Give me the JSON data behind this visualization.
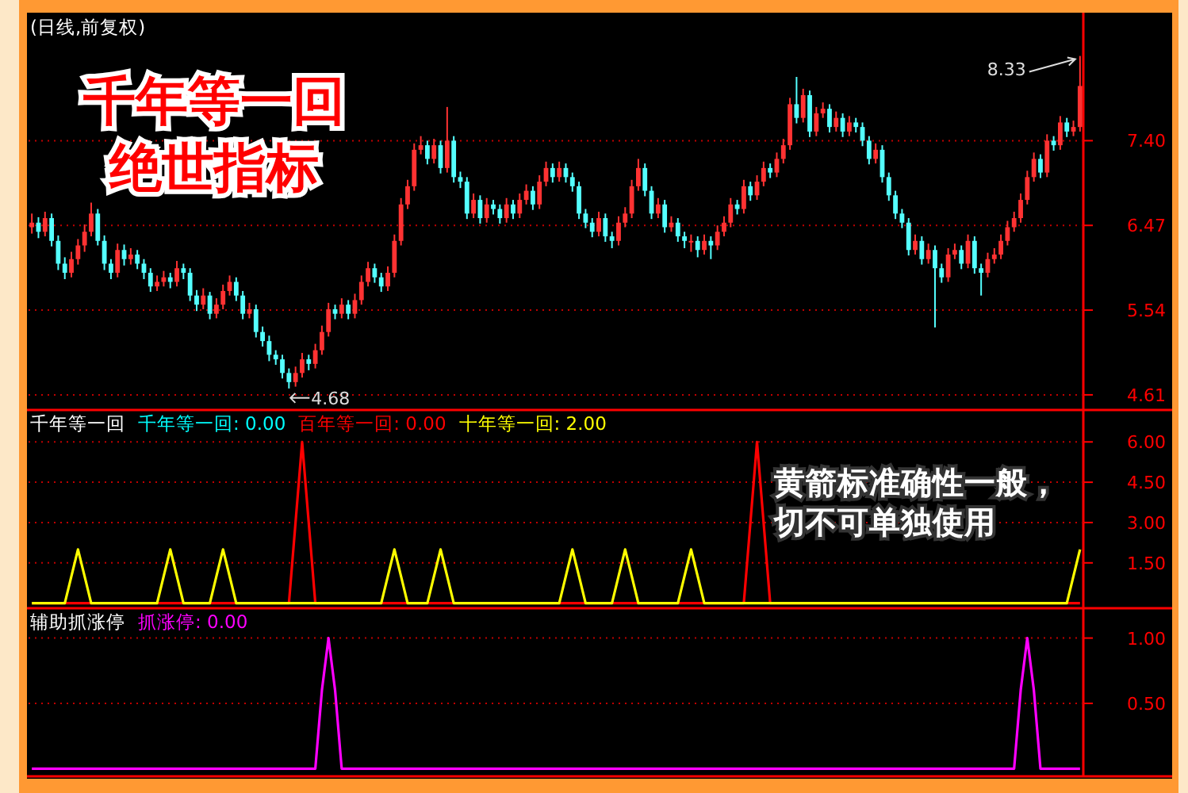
{
  "chart_data": [
    {
      "type": "candlestick",
      "title": "(日线,前复权)",
      "annotations": [
        "千年等一回",
        "绝世指标",
        "4.68",
        "8.33"
      ],
      "categories": [
        null,
        null,
        null,
        null,
        null,
        null,
        null,
        null,
        null,
        null,
        null,
        null,
        null,
        null,
        null,
        null,
        null,
        null,
        null,
        null,
        null,
        null,
        null,
        null,
        null,
        null,
        null,
        null,
        null,
        null,
        null,
        null,
        null,
        null,
        null,
        null,
        null,
        null,
        null,
        null,
        null,
        null,
        null,
        null,
        null,
        null,
        null,
        null,
        null,
        null,
        null,
        null,
        null,
        null,
        null,
        null,
        null,
        null,
        null,
        null,
        null,
        null,
        null,
        null,
        null,
        null,
        null,
        null,
        null,
        null,
        null,
        null,
        null,
        null,
        null,
        null,
        null,
        null,
        null,
        null,
        null,
        null,
        null,
        null,
        null,
        null,
        null,
        null,
        null,
        null,
        null,
        null,
        null,
        null,
        null,
        null,
        null,
        null,
        null,
        null,
        null,
        null,
        null,
        null,
        null,
        null,
        null,
        null,
        null,
        null,
        null,
        null,
        null,
        null,
        null,
        null,
        null,
        null,
        null,
        null,
        null,
        null,
        null,
        null,
        null,
        null,
        null,
        null,
        null,
        null,
        null,
        null,
        null,
        null,
        null,
        null,
        null,
        null,
        null,
        null,
        null,
        null,
        null,
        null,
        null,
        null,
        null,
        null,
        null,
        null,
        null,
        null,
        null,
        null,
        null,
        null,
        null,
        null,
        null,
        null
      ],
      "ohlc": [
        [
          6.45,
          6.6,
          6.38,
          6.5
        ],
        [
          6.5,
          6.56,
          6.33,
          6.4
        ],
        [
          6.4,
          6.62,
          6.35,
          6.55
        ],
        [
          6.55,
          6.6,
          6.24,
          6.3
        ],
        [
          6.3,
          6.36,
          5.98,
          6.05
        ],
        [
          6.05,
          6.12,
          5.88,
          5.95
        ],
        [
          5.95,
          6.18,
          5.9,
          6.1
        ],
        [
          6.1,
          6.32,
          6.04,
          6.25
        ],
        [
          6.25,
          6.48,
          6.18,
          6.4
        ],
        [
          6.4,
          6.72,
          6.35,
          6.6
        ],
        [
          6.6,
          6.65,
          6.25,
          6.3
        ],
        [
          6.3,
          6.36,
          5.98,
          6.05
        ],
        [
          6.05,
          6.1,
          5.88,
          5.95
        ],
        [
          5.95,
          6.27,
          5.9,
          6.2
        ],
        [
          6.2,
          6.26,
          6.03,
          6.1
        ],
        [
          6.1,
          6.22,
          6.04,
          6.15
        ],
        [
          6.15,
          6.2,
          5.99,
          6.05
        ],
        [
          6.05,
          6.1,
          5.88,
          5.95
        ],
        [
          5.95,
          6.0,
          5.74,
          5.8
        ],
        [
          5.8,
          5.92,
          5.75,
          5.85
        ],
        [
          5.85,
          5.97,
          5.8,
          5.9
        ],
        [
          5.9,
          5.95,
          5.78,
          5.85
        ],
        [
          5.85,
          6.08,
          5.8,
          6.0
        ],
        [
          6.0,
          6.05,
          5.88,
          5.95
        ],
        [
          5.95,
          6.0,
          5.64,
          5.7
        ],
        [
          5.7,
          5.76,
          5.53,
          5.6
        ],
        [
          5.6,
          5.78,
          5.55,
          5.7
        ],
        [
          5.7,
          5.74,
          5.44,
          5.5
        ],
        [
          5.5,
          5.67,
          5.45,
          5.6
        ],
        [
          5.6,
          5.82,
          5.55,
          5.75
        ],
        [
          5.75,
          5.92,
          5.7,
          5.85
        ],
        [
          5.85,
          5.9,
          5.64,
          5.7
        ],
        [
          5.7,
          5.75,
          5.44,
          5.5
        ],
        [
          5.5,
          5.62,
          5.45,
          5.55
        ],
        [
          5.55,
          5.6,
          5.24,
          5.3
        ],
        [
          5.3,
          5.36,
          5.14,
          5.2
        ],
        [
          5.2,
          5.26,
          4.98,
          5.05
        ],
        [
          5.05,
          5.1,
          4.94,
          5.0
        ],
        [
          5.0,
          5.05,
          4.79,
          4.85
        ],
        [
          4.85,
          4.9,
          4.68,
          4.75
        ],
        [
          4.75,
          4.92,
          4.7,
          4.85
        ],
        [
          4.85,
          5.07,
          4.8,
          5.0
        ],
        [
          5.0,
          5.05,
          4.88,
          4.95
        ],
        [
          4.95,
          5.17,
          4.9,
          5.1
        ],
        [
          5.1,
          5.37,
          5.05,
          5.3
        ],
        [
          5.3,
          5.62,
          5.25,
          5.55
        ],
        [
          5.55,
          5.6,
          5.44,
          5.5
        ],
        [
          5.5,
          5.67,
          5.45,
          5.6
        ],
        [
          5.6,
          5.65,
          5.44,
          5.5
        ],
        [
          5.5,
          5.72,
          5.45,
          5.65
        ],
        [
          5.65,
          5.92,
          5.6,
          5.85
        ],
        [
          5.85,
          6.07,
          5.8,
          6.0
        ],
        [
          6.0,
          6.05,
          5.84,
          5.9
        ],
        [
          5.9,
          5.95,
          5.74,
          5.8
        ],
        [
          5.8,
          6.02,
          5.75,
          5.95
        ],
        [
          5.95,
          6.37,
          5.9,
          6.3
        ],
        [
          6.3,
          6.77,
          6.25,
          6.7
        ],
        [
          6.7,
          6.97,
          6.65,
          6.9
        ],
        [
          6.9,
          7.37,
          6.85,
          7.3
        ],
        [
          7.3,
          7.45,
          7.25,
          7.35
        ],
        [
          7.35,
          7.4,
          7.14,
          7.2
        ],
        [
          7.2,
          7.42,
          7.15,
          7.35
        ],
        [
          7.35,
          7.4,
          7.04,
          7.1
        ],
        [
          7.1,
          7.77,
          7.05,
          7.4
        ],
        [
          7.4,
          7.45,
          6.94,
          7.0
        ],
        [
          7.0,
          7.06,
          6.88,
          6.95
        ],
        [
          6.95,
          7.0,
          6.54,
          6.6
        ],
        [
          6.6,
          6.82,
          6.55,
          6.75
        ],
        [
          6.75,
          6.8,
          6.49,
          6.55
        ],
        [
          6.55,
          6.77,
          6.5,
          6.7
        ],
        [
          6.7,
          6.75,
          6.59,
          6.65
        ],
        [
          6.65,
          6.7,
          6.49,
          6.55
        ],
        [
          6.55,
          6.77,
          6.5,
          6.7
        ],
        [
          6.7,
          6.75,
          6.54,
          6.6
        ],
        [
          6.6,
          6.82,
          6.55,
          6.75
        ],
        [
          6.75,
          6.92,
          6.7,
          6.85
        ],
        [
          6.85,
          6.9,
          6.64,
          6.7
        ],
        [
          6.7,
          7.02,
          6.65,
          6.95
        ],
        [
          6.95,
          7.17,
          6.9,
          7.1
        ],
        [
          7.1,
          7.15,
          6.94,
          7.0
        ],
        [
          7.0,
          7.17,
          6.95,
          7.1
        ],
        [
          7.1,
          7.15,
          6.94,
          7.0
        ],
        [
          7.0,
          7.05,
          6.84,
          6.9
        ],
        [
          6.9,
          6.95,
          6.54,
          6.6
        ],
        [
          6.6,
          6.65,
          6.44,
          6.5
        ],
        [
          6.5,
          6.55,
          6.34,
          6.4
        ],
        [
          6.4,
          6.62,
          6.35,
          6.55
        ],
        [
          6.55,
          6.6,
          6.29,
          6.35
        ],
        [
          6.35,
          6.4,
          6.22,
          6.3
        ],
        [
          6.3,
          6.57,
          6.25,
          6.5
        ],
        [
          6.5,
          6.67,
          6.45,
          6.6
        ],
        [
          6.6,
          6.97,
          6.55,
          6.9
        ],
        [
          6.9,
          7.2,
          6.85,
          7.1
        ],
        [
          7.1,
          7.15,
          6.79,
          6.85
        ],
        [
          6.85,
          6.9,
          6.54,
          6.6
        ],
        [
          6.6,
          6.77,
          6.55,
          6.7
        ],
        [
          6.7,
          6.75,
          6.39,
          6.45
        ],
        [
          6.45,
          6.57,
          6.4,
          6.5
        ],
        [
          6.5,
          6.55,
          6.29,
          6.35
        ],
        [
          6.35,
          6.4,
          6.22,
          6.3
        ],
        [
          6.3,
          6.37,
          6.18,
          6.3
        ],
        [
          6.3,
          6.35,
          6.12,
          6.2
        ],
        [
          6.2,
          6.37,
          6.15,
          6.3
        ],
        [
          6.3,
          6.35,
          6.1,
          6.25
        ],
        [
          6.25,
          6.47,
          6.2,
          6.4
        ],
        [
          6.4,
          6.57,
          6.35,
          6.5
        ],
        [
          6.5,
          6.77,
          6.45,
          6.7
        ],
        [
          6.7,
          6.75,
          6.59,
          6.65
        ],
        [
          6.65,
          6.97,
          6.6,
          6.9
        ],
        [
          6.9,
          6.95,
          6.74,
          6.8
        ],
        [
          6.8,
          7.02,
          6.75,
          6.95
        ],
        [
          6.95,
          7.17,
          6.9,
          7.1
        ],
        [
          7.1,
          7.15,
          6.99,
          7.05
        ],
        [
          7.05,
          7.27,
          7.0,
          7.2
        ],
        [
          7.2,
          7.42,
          7.15,
          7.35
        ],
        [
          7.35,
          7.87,
          7.3,
          7.8
        ],
        [
          7.8,
          8.1,
          7.59,
          7.65
        ],
        [
          7.65,
          7.97,
          7.6,
          7.9
        ],
        [
          7.9,
          7.95,
          7.44,
          7.5
        ],
        [
          7.5,
          7.77,
          7.45,
          7.7
        ],
        [
          7.7,
          7.82,
          7.65,
          7.75
        ],
        [
          7.75,
          7.8,
          7.49,
          7.55
        ],
        [
          7.55,
          7.72,
          7.5,
          7.65
        ],
        [
          7.65,
          7.7,
          7.44,
          7.5
        ],
        [
          7.5,
          7.67,
          7.45,
          7.6
        ],
        [
          7.6,
          7.65,
          7.49,
          7.55
        ],
        [
          7.55,
          7.6,
          7.34,
          7.4
        ],
        [
          7.4,
          7.45,
          7.14,
          7.2
        ],
        [
          7.2,
          7.37,
          7.15,
          7.3
        ],
        [
          7.3,
          7.35,
          6.94,
          7.0
        ],
        [
          7.0,
          7.05,
          6.74,
          6.8
        ],
        [
          6.8,
          6.85,
          6.54,
          6.6
        ],
        [
          6.6,
          6.65,
          6.44,
          6.5
        ],
        [
          6.5,
          6.55,
          6.14,
          6.2
        ],
        [
          6.2,
          6.37,
          6.15,
          6.3
        ],
        [
          6.3,
          6.35,
          6.04,
          6.1
        ],
        [
          6.1,
          6.27,
          6.05,
          6.2
        ],
        [
          6.2,
          6.25,
          5.35,
          6.0
        ],
        [
          6.0,
          6.05,
          5.84,
          5.9
        ],
        [
          5.9,
          6.22,
          5.85,
          6.15
        ],
        [
          6.15,
          6.27,
          6.1,
          6.2
        ],
        [
          6.2,
          6.25,
          5.99,
          6.05
        ],
        [
          6.05,
          6.37,
          6.0,
          6.3
        ],
        [
          6.3,
          6.35,
          5.94,
          6.0
        ],
        [
          6.0,
          6.05,
          5.7,
          5.95
        ],
        [
          5.95,
          6.17,
          5.9,
          6.1
        ],
        [
          6.1,
          6.22,
          6.05,
          6.15
        ],
        [
          6.15,
          6.37,
          6.1,
          6.3
        ],
        [
          6.3,
          6.52,
          6.25,
          6.45
        ],
        [
          6.45,
          6.62,
          6.4,
          6.55
        ],
        [
          6.55,
          6.82,
          6.5,
          6.75
        ],
        [
          6.75,
          7.07,
          6.7,
          7.0
        ],
        [
          7.0,
          7.27,
          6.95,
          7.2
        ],
        [
          7.2,
          7.25,
          6.99,
          7.05
        ],
        [
          7.05,
          7.47,
          7.0,
          7.4
        ],
        [
          7.4,
          7.45,
          7.29,
          7.35
        ],
        [
          7.35,
          7.67,
          7.3,
          7.6
        ],
        [
          7.6,
          7.65,
          7.44,
          7.5
        ],
        [
          7.5,
          7.62,
          7.45,
          7.55
        ],
        [
          7.55,
          8.33,
          7.5,
          8.0
        ]
      ],
      "colors": [
        "#ff3232",
        "#54ffff",
        "#ff3232",
        "#54ffff",
        "#54ffff",
        "#54ffff",
        "#ff3232",
        "#ff3232",
        "#ff3232",
        "#ff3232",
        "#54ffff",
        "#54ffff",
        "#54ffff",
        "#ff3232",
        "#54ffff",
        "#ff3232",
        "#54ffff",
        "#54ffff",
        "#54ffff",
        "#ff3232",
        "#ff3232",
        "#54ffff",
        "#ff3232",
        "#54ffff",
        "#54ffff",
        "#54ffff",
        "#ff3232",
        "#54ffff",
        "#ff3232",
        "#ff3232",
        "#ff3232",
        "#54ffff",
        "#54ffff",
        "#ff3232",
        "#54ffff",
        "#54ffff",
        "#54ffff",
        "#54ffff",
        "#54ffff",
        "#54ffff",
        "#ff3232",
        "#ff3232",
        "#54ffff",
        "#ff3232",
        "#ff3232",
        "#ff3232",
        "#54ffff",
        "#ff3232",
        "#54ffff",
        "#ff3232",
        "#ff3232",
        "#ff3232",
        "#54ffff",
        "#54ffff",
        "#ff3232",
        "#ff3232",
        "#ff3232",
        "#ff3232",
        "#ff3232",
        "#ff3232",
        "#54ffff",
        "#ff3232",
        "#54ffff",
        "#ff3232",
        "#54ffff",
        "#54ffff",
        "#54ffff",
        "#ff3232",
        "#54ffff",
        "#ff3232",
        "#54ffff",
        "#54ffff",
        "#ff3232",
        "#54ffff",
        "#ff3232",
        "#ff3232",
        "#54ffff",
        "#ff3232",
        "#ff3232",
        "#54ffff",
        "#ff3232",
        "#54ffff",
        "#54ffff",
        "#54ffff",
        "#54ffff",
        "#54ffff",
        "#ff3232",
        "#54ffff",
        "#54ffff",
        "#ff3232",
        "#ff3232",
        "#ff3232",
        "#ff3232",
        "#54ffff",
        "#54ffff",
        "#ff3232",
        "#54ffff",
        "#ff3232",
        "#54ffff",
        "#54ffff",
        "#ff3232",
        "#54ffff",
        "#ff3232",
        "#54ffff",
        "#ff3232",
        "#ff3232",
        "#ff3232",
        "#54ffff",
        "#ff3232",
        "#54ffff",
        "#ff3232",
        "#ff3232",
        "#54ffff",
        "#ff3232",
        "#ff3232",
        "#ff3232",
        "#54ffff",
        "#ff3232",
        "#54ffff",
        "#ff3232",
        "#ff3232",
        "#54ffff",
        "#ff3232",
        "#54ffff",
        "#ff3232",
        "#54ffff",
        "#54ffff",
        "#54ffff",
        "#ff3232",
        "#54ffff",
        "#54ffff",
        "#54ffff",
        "#54ffff",
        "#54ffff",
        "#ff3232",
        "#54ffff",
        "#ff3232",
        "#54ffff",
        "#54ffff",
        "#ff3232",
        "#ff3232",
        "#54ffff",
        "#ff3232",
        "#54ffff",
        "#54ffff",
        "#ff3232",
        "#ff3232",
        "#ff3232",
        "#ff3232",
        "#ff3232",
        "#ff3232",
        "#ff3232",
        "#ff3232",
        "#54ffff",
        "#ff3232",
        "#54ffff",
        "#ff3232",
        "#54ffff",
        "#ff3232",
        "#ff3232"
      ],
      "ylim": [
        4.47,
        8.77
      ],
      "yticks": [
        4.61,
        5.54,
        6.47,
        {
          "value": 7.4,
          "label": "7.40"
        }
      ],
      "grid": "y"
    },
    {
      "type": "line",
      "title": "千年等一回",
      "legend": "top left",
      "grid": "y",
      "annotations": [
        "黄箭标准确性一般，切不可单独使用"
      ],
      "categories": [
        null,
        null,
        null,
        null,
        null,
        null,
        null,
        null,
        null,
        null,
        null,
        null,
        null,
        null,
        null,
        null,
        null,
        null,
        null,
        null,
        null,
        null,
        null,
        null,
        null,
        null,
        null,
        null,
        null,
        null,
        null,
        null,
        null,
        null,
        null,
        null,
        null,
        null,
        null,
        null,
        null,
        null,
        null,
        null,
        null,
        null,
        null,
        null,
        null,
        null,
        null,
        null,
        null,
        null,
        null,
        null,
        null,
        null,
        null,
        null,
        null,
        null,
        null,
        null,
        null,
        null,
        null,
        null,
        null,
        null,
        null,
        null,
        null,
        null,
        null,
        null,
        null,
        null,
        null,
        null,
        null,
        null,
        null,
        null,
        null,
        null,
        null,
        null,
        null,
        null,
        null,
        null,
        null,
        null,
        null,
        null,
        null,
        null,
        null,
        null,
        null,
        null,
        null,
        null,
        null,
        null,
        null,
        null,
        null,
        null,
        null,
        null,
        null,
        null,
        null,
        null,
        null,
        null,
        null,
        null,
        null,
        null,
        null,
        null,
        null,
        null,
        null,
        null,
        null,
        null,
        null,
        null,
        null,
        null,
        null,
        null,
        null,
        null,
        null,
        null,
        null,
        null,
        null,
        null,
        null,
        null,
        null,
        null,
        null,
        null,
        null,
        null,
        null,
        null,
        null,
        null,
        null,
        null,
        null,
        null
      ],
      "ylim": [
        -0.1,
        7.1
      ],
      "yticks": [
        {
          "value": 1.5,
          "label": "1.50"
        },
        {
          "value": 3,
          "label": "3.00"
        },
        {
          "value": 4.5,
          "label": "4.50"
        },
        {
          "value": 6,
          "label": "6.00"
        }
      ],
      "series": [
        {
          "name": "千年等一回: 0.00",
          "color": "#00ffff",
          "values": [
            null,
            null,
            null,
            null,
            null,
            null,
            null,
            null,
            null,
            null,
            null,
            null,
            null,
            null,
            null,
            null,
            null,
            null,
            null,
            null,
            null,
            null,
            null,
            null,
            null,
            null,
            null,
            null,
            null,
            null,
            null,
            null,
            null,
            null,
            null,
            null,
            null,
            null,
            null,
            null,
            null,
            null,
            null,
            null,
            null,
            null,
            null,
            null,
            null,
            null,
            null,
            null,
            null,
            null,
            null,
            null,
            null,
            null,
            null,
            null,
            null,
            null,
            null,
            null,
            null,
            null,
            null,
            null,
            null,
            null,
            null,
            null,
            null,
            null,
            null,
            null,
            null,
            null,
            null,
            null,
            null,
            null,
            null,
            null,
            null,
            null,
            null,
            null,
            null,
            null,
            null,
            null,
            null,
            null,
            null,
            null,
            null,
            null,
            null,
            null,
            null,
            null,
            null,
            null,
            null,
            null,
            null,
            null,
            null,
            null,
            null,
            null,
            null,
            null,
            null,
            null,
            null,
            null,
            null,
            null,
            null,
            null,
            null,
            null,
            null,
            null,
            null,
            null,
            null,
            null,
            null,
            null,
            null,
            null,
            null,
            null,
            null,
            null,
            null,
            null,
            null,
            null,
            null,
            null,
            null,
            null,
            null,
            null,
            null,
            null,
            null,
            null,
            null,
            null,
            null,
            null,
            null,
            null,
            null,
            null
          ]
        },
        {
          "name": "百年等一回: 0.00",
          "color": "#ff0000",
          "values": [
            0,
            0,
            0,
            0,
            0,
            0,
            0,
            0,
            0,
            0,
            0,
            0,
            0,
            0,
            0,
            0,
            0,
            0,
            0,
            0,
            0,
            0,
            0,
            0,
            0,
            0,
            0,
            0,
            0,
            0,
            0,
            0,
            0,
            0,
            0,
            0,
            0,
            0,
            0,
            0,
            3,
            6,
            3,
            0,
            0,
            0,
            0,
            0,
            0,
            0,
            0,
            0,
            0,
            0,
            0,
            0,
            0,
            0,
            0,
            0,
            0,
            0,
            0,
            0,
            0,
            0,
            0,
            0,
            0,
            0,
            0,
            0,
            0,
            0,
            0,
            0,
            0,
            0,
            0,
            0,
            0,
            0,
            0,
            0,
            0,
            0,
            0,
            0,
            0,
            0,
            0,
            0,
            0,
            0,
            0,
            0,
            0,
            0,
            0,
            0,
            0,
            0,
            0,
            0,
            0,
            0,
            0,
            0,
            0,
            3,
            6,
            3,
            0,
            0,
            0,
            0,
            0,
            0,
            0,
            0,
            0,
            0,
            0,
            0,
            0,
            0,
            0,
            0,
            0,
            0,
            0,
            0,
            0,
            0,
            0,
            0,
            0,
            0,
            0,
            0,
            0,
            0,
            0,
            0,
            0,
            0,
            0,
            0,
            0,
            0,
            0,
            0,
            0,
            0,
            0,
            0,
            0,
            0,
            0,
            0
          ]
        },
        {
          "name": "十年等一回: 2.00",
          "color": "#ffff00",
          "values": [
            0,
            0,
            0,
            0,
            0,
            0,
            1,
            2,
            1,
            0,
            0,
            0,
            0,
            0,
            0,
            0,
            0,
            0,
            0,
            0,
            1,
            2,
            1,
            0,
            0,
            0,
            0,
            0,
            1,
            2,
            1,
            0,
            0,
            0,
            0,
            0,
            0,
            0,
            0,
            0,
            0,
            0,
            0,
            0,
            0,
            0,
            0,
            0,
            0,
            0,
            0,
            0,
            0,
            0,
            1,
            2,
            1,
            0,
            0,
            0,
            0,
            1,
            2,
            1,
            0,
            0,
            0,
            0,
            0,
            0,
            0,
            0,
            0,
            0,
            0,
            0,
            0,
            0,
            0,
            0,
            0,
            1,
            2,
            1,
            0,
            0,
            0,
            0,
            0,
            1,
            2,
            1,
            0,
            0,
            0,
            0,
            0,
            0,
            0,
            1,
            2,
            1,
            0,
            0,
            0,
            0,
            0,
            0,
            0,
            0,
            0,
            0,
            0,
            0,
            0,
            0,
            0,
            0,
            0,
            0,
            0,
            0,
            0,
            0,
            0,
            0,
            0,
            0,
            0,
            0,
            0,
            0,
            0,
            0,
            0,
            0,
            0,
            0,
            0,
            0,
            0,
            0,
            0,
            0,
            0,
            0,
            0,
            0,
            0,
            0,
            0,
            0,
            0,
            0,
            0,
            0,
            0,
            0,
            1,
            2
          ]
        }
      ]
    },
    {
      "type": "line",
      "title": "辅助抓涨停",
      "legend": "top left",
      "grid": "y",
      "categories": [
        null,
        null,
        null,
        null,
        null,
        null,
        null,
        null,
        null,
        null,
        null,
        null,
        null,
        null,
        null,
        null,
        null,
        null,
        null,
        null,
        null,
        null,
        null,
        null,
        null,
        null,
        null,
        null,
        null,
        null,
        null,
        null,
        null,
        null,
        null,
        null,
        null,
        null,
        null,
        null,
        null,
        null,
        null,
        null,
        null,
        null,
        null,
        null,
        null,
        null,
        null,
        null,
        null,
        null,
        null,
        null,
        null,
        null,
        null,
        null,
        null,
        null,
        null,
        null,
        null,
        null,
        null,
        null,
        null,
        null,
        null,
        null,
        null,
        null,
        null,
        null,
        null,
        null,
        null,
        null,
        null,
        null,
        null,
        null,
        null,
        null,
        null,
        null,
        null,
        null,
        null,
        null,
        null,
        null,
        null,
        null,
        null,
        null,
        null,
        null,
        null,
        null,
        null,
        null,
        null,
        null,
        null,
        null,
        null,
        null,
        null,
        null,
        null,
        null,
        null,
        null,
        null,
        null,
        null,
        null,
        null,
        null,
        null,
        null,
        null,
        null,
        null,
        null,
        null,
        null,
        null,
        null,
        null,
        null,
        null,
        null,
        null,
        null,
        null,
        null,
        null,
        null,
        null,
        null,
        null,
        null,
        null,
        null,
        null,
        null,
        null,
        null,
        null,
        null,
        null,
        null,
        null,
        null,
        null,
        null
      ],
      "ylim": [
        -0.04,
        1.21
      ],
      "yticks": [
        {
          "value": 0.5,
          "label": "0.50"
        },
        {
          "value": 1,
          "label": "1.00"
        }
      ],
      "series": [
        {
          "name": "抓涨停: 0.00",
          "color": "#ff00ff",
          "values": [
            0,
            0,
            0,
            0,
            0,
            0,
            0,
            0,
            0,
            0,
            0,
            0,
            0,
            0,
            0,
            0,
            0,
            0,
            0,
            0,
            0,
            0,
            0,
            0,
            0,
            0,
            0,
            0,
            0,
            0,
            0,
            0,
            0,
            0,
            0,
            0,
            0,
            0,
            0,
            0,
            0,
            0,
            0,
            0,
            0.6,
            1,
            0.6,
            0,
            0,
            0,
            0,
            0,
            0,
            0,
            0,
            0,
            0,
            0,
            0,
            0,
            0,
            0,
            0,
            0,
            0,
            0,
            0,
            0,
            0,
            0,
            0,
            0,
            0,
            0,
            0,
            0,
            0,
            0,
            0,
            0,
            0,
            0,
            0,
            0,
            0,
            0,
            0,
            0,
            0,
            0,
            0,
            0,
            0,
            0,
            0,
            0,
            0,
            0,
            0,
            0,
            0,
            0,
            0,
            0,
            0,
            0,
            0,
            0,
            0,
            0,
            0,
            0,
            0,
            0,
            0,
            0,
            0,
            0,
            0,
            0,
            0,
            0,
            0,
            0,
            0,
            0,
            0,
            0,
            0,
            0,
            0,
            0,
            0,
            0,
            0,
            0,
            0,
            0,
            0,
            0,
            0,
            0,
            0,
            0,
            0,
            0,
            0,
            0,
            0,
            0,
            0.6,
            1,
            0.6,
            0,
            0,
            0,
            0,
            0,
            0,
            0
          ]
        }
      ]
    }
  ]
}
